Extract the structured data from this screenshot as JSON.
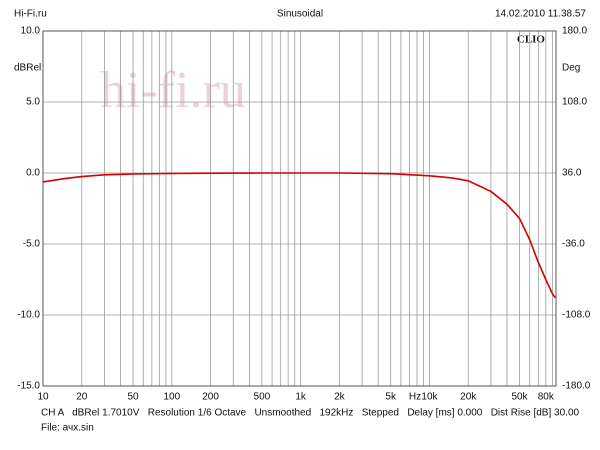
{
  "chart_data": {
    "type": "line",
    "header_left": "Hi-Fi.ru",
    "title": "Sinusoidal",
    "header_right": "14.02.2010 11.38.57",
    "ylabel": "dBRel",
    "y2label": "Deg",
    "x_unit": "Hz",
    "logo": "CLIO",
    "watermark": "hi-fi.ru",
    "footer": "CH A   dBRel 1.7010V   Resolution 1/6 Octave   Unsmoothed   192kHz   Stepped   Delay [ms] 0.000   Dist Rise [dB] 30.00",
    "file": "File: ачх.sin",
    "xscale": "log",
    "xlim": [
      10,
      96000
    ],
    "xticks": [
      10,
      20,
      50,
      100,
      200,
      500,
      {
        "value": 1000,
        "label": "1k"
      },
      {
        "value": 2000,
        "label": "2k"
      },
      {
        "value": 5000,
        "label": "5k"
      },
      {
        "value": 10000,
        "label": "10k"
      },
      {
        "value": 20000,
        "label": "20k"
      },
      {
        "value": 50000,
        "label": "50k"
      },
      {
        "value": 80000,
        "label": "80k"
      }
    ],
    "xgrid": [
      20,
      30,
      40,
      50,
      60,
      70,
      80,
      90,
      100,
      200,
      300,
      400,
      500,
      600,
      700,
      800,
      900,
      1000,
      2000,
      3000,
      4000,
      5000,
      6000,
      7000,
      8000,
      9000,
      10000,
      20000,
      30000,
      40000,
      50000,
      60000,
      70000,
      80000,
      90000
    ],
    "ylim": [
      -15,
      10
    ],
    "yticks": [
      {
        "value": 10,
        "label": "10.0"
      },
      {
        "value": 5,
        "label": "5.0"
      },
      {
        "value": 0,
        "label": "0.0"
      },
      {
        "value": -5,
        "label": "-5.0"
      },
      {
        "value": -10,
        "label": "-10.0"
      },
      {
        "value": -15,
        "label": "-15.0"
      }
    ],
    "y2lim": [
      -180,
      180
    ],
    "y2ticks": [
      {
        "value": 180,
        "label": "180.0"
      },
      {
        "value": 108,
        "label": "108.0"
      },
      {
        "value": 36,
        "label": "36.0"
      },
      {
        "value": -36,
        "label": "-36.0"
      },
      {
        "value": -108,
        "label": "-108.0"
      },
      {
        "value": -180,
        "label": "-180.0"
      }
    ],
    "x": [
      10,
      15,
      20,
      30,
      50,
      100,
      200,
      500,
      1000,
      2000,
      5000,
      10000,
      15000,
      20000,
      30000,
      40000,
      50000,
      60000,
      70000,
      80000,
      90000,
      95000
    ],
    "series": [
      {
        "color": "#d40000",
        "values": [
          -0.63,
          -0.38,
          -0.25,
          -0.13,
          -0.07,
          -0.03,
          -0.01,
          0,
          0,
          0,
          -0.05,
          -0.2,
          -0.35,
          -0.55,
          -1.3,
          -2.2,
          -3.2,
          -4.7,
          -6.3,
          -7.5,
          -8.5,
          -8.8
        ]
      }
    ]
  }
}
